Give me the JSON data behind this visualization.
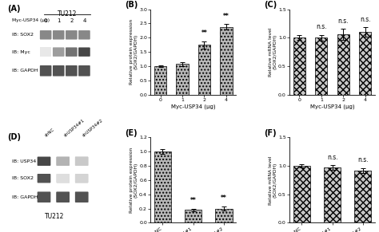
{
  "panel_B": {
    "categories": [
      "0",
      "1",
      "2",
      "4"
    ],
    "values": [
      1.0,
      1.08,
      1.75,
      2.38
    ],
    "errors": [
      0.04,
      0.07,
      0.13,
      0.1
    ],
    "xlabel": "Myc-USP34 (μg)",
    "ylabel": "Relative protein expression\n(SOX2/GAPDH)",
    "ylim": [
      0,
      3.0
    ],
    "yticks": [
      0.0,
      0.5,
      1.0,
      1.5,
      2.0,
      2.5,
      3.0
    ],
    "significance": [
      "",
      "",
      "**",
      "**"
    ],
    "label": "(B)"
  },
  "panel_C": {
    "categories": [
      "0",
      "1",
      "2",
      "4"
    ],
    "values": [
      1.0,
      1.0,
      1.06,
      1.1
    ],
    "errors": [
      0.04,
      0.05,
      0.1,
      0.08
    ],
    "xlabel": "Myc-USP34 (μg)",
    "ylabel": "Relative mRNA level\n(SOX2/GAPDH)",
    "ylim": [
      0,
      1.5
    ],
    "yticks": [
      0.0,
      0.5,
      1.0,
      1.5
    ],
    "significance": [
      "",
      "n.s.",
      "n.s.",
      "n.s."
    ],
    "label": "(C)"
  },
  "panel_E": {
    "categories": [
      "shNC",
      "shUSP34#1",
      "shUSP34#2"
    ],
    "values": [
      1.0,
      0.18,
      0.2
    ],
    "errors": [
      0.03,
      0.02,
      0.03
    ],
    "xlabel": "",
    "ylabel": "Relative protein expression\n(SOX2/GAPDH)",
    "ylim": [
      0,
      1.2
    ],
    "yticks": [
      0.0,
      0.2,
      0.4,
      0.6,
      0.8,
      1.0,
      1.2
    ],
    "significance": [
      "",
      "**",
      "**"
    ],
    "label": "(E)"
  },
  "panel_F": {
    "categories": [
      "shNC",
      "shUSP34#1",
      "shUSP34#2"
    ],
    "values": [
      1.0,
      0.97,
      0.92
    ],
    "errors": [
      0.03,
      0.04,
      0.04
    ],
    "xlabel": "",
    "ylabel": "Relative mRNA level\n(SOX2/GAPDH)",
    "ylim": [
      0,
      1.5
    ],
    "yticks": [
      0.0,
      0.5,
      1.0,
      1.5
    ],
    "significance": [
      "",
      "n.s.",
      "n.s."
    ],
    "label": "(F)"
  },
  "bar_color_dot": "#b0b0b0",
  "bar_color_cross": "#909090",
  "figure_bg": "#ffffff",
  "panel_A": {
    "title": "TU212",
    "row_label": "Myc-USP34 (μg)",
    "cols": [
      "0",
      "1",
      "2",
      "4"
    ],
    "rows": [
      "IB: SOX2",
      "IB: Myc",
      "IB: GAPDH"
    ],
    "sox2_intensities": [
      0.55,
      0.55,
      0.55,
      0.55
    ],
    "myc_intensities": [
      0.0,
      0.45,
      0.65,
      0.85
    ],
    "gapdh_intensities": [
      0.8,
      0.8,
      0.8,
      0.8
    ],
    "label": "(A)"
  },
  "panel_D": {
    "title": "TU212",
    "cols": [
      "shNC",
      "shUSP34#1",
      "shUSP34#2"
    ],
    "rows": [
      "IB: USP34",
      "IB: SOX2",
      "IB: GAPDH"
    ],
    "usp34_intensities": [
      0.85,
      0.35,
      0.25
    ],
    "sox2_intensities": [
      0.8,
      0.15,
      0.2
    ],
    "gapdh_intensities": [
      0.8,
      0.8,
      0.8
    ],
    "label": "(D)"
  }
}
